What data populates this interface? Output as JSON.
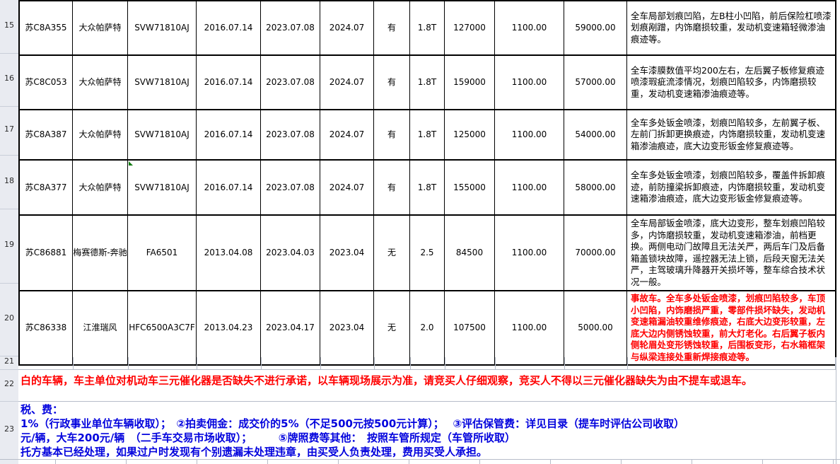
{
  "sheet": {
    "row_numbers": [
      "15",
      "16",
      "17",
      "18",
      "19",
      "20",
      "21",
      "22",
      "23"
    ],
    "vehicles": [
      {
        "no": "15",
        "plate": "苏C8A355",
        "brand": "大众帕萨特",
        "model": "SVW71810AJ",
        "reg_date": "2016.07.14",
        "check_date": "2023.07.08",
        "valid_until": "2024.07",
        "catalyst": "有",
        "displacement": "1.8T",
        "mileage": "127000",
        "fee": "1100.00",
        "price": "59000.00",
        "condition": "全车局部划痕凹陷，左B柱小凹陷，前后保险杠喷漆划痕剐蹭，内饰磨损较重，发动机变速箱轻微渗油痕迹等。",
        "condition_red": false,
        "corner_marker": false
      },
      {
        "no": "16",
        "plate": "苏C8C053",
        "brand": "大众帕萨特",
        "model": "SVW71810AJ",
        "reg_date": "2016.07.14",
        "check_date": "2023.07.08",
        "valid_until": "2024.07",
        "catalyst": "有",
        "displacement": "1.8T",
        "mileage": "159000",
        "fee": "1100.00",
        "price": "57000.00",
        "condition": "全车漆膜数值平均200左右，左后翼子板修复痕迹喷漆瑕疵流漆情况，划痕凹陷较多，内饰磨损较重，发动机变速箱渗油痕迹等。",
        "condition_red": false,
        "corner_marker": false
      },
      {
        "no": "17",
        "plate": "苏C8A387",
        "brand": "大众帕萨特",
        "model": "SVW71810AJ",
        "reg_date": "2016.07.14",
        "check_date": "2023.07.08",
        "valid_until": "2024.07",
        "catalyst": "有",
        "displacement": "1.8T",
        "mileage": "125000",
        "fee": "1100.00",
        "price": "54000.00",
        "condition": "全车多处钣金喷漆，划痕凹陷较多，左前翼子板、左前门拆卸更换痕迹，内饰磨损较重，发动机变速箱渗油痕迹，底大边变形钣金修复痕迹等。",
        "condition_red": false,
        "corner_marker": false
      },
      {
        "no": "18",
        "plate": "苏C8A377",
        "brand": "大众帕萨特",
        "model": "SVW71810AJ",
        "reg_date": "2016.07.14",
        "check_date": "2023.07.08",
        "valid_until": "2024.07",
        "catalyst": "有",
        "displacement": "1.8T",
        "mileage": "155000",
        "fee": "1100.00",
        "price": "58000.00",
        "condition": "全车多处钣金喷漆，划痕凹陷较多，覆盖件拆卸痕迹，前防撞梁拆卸痕迹，内饰磨损较重，发动机变速箱渗油痕迹，底大边变形钣金修复痕迹等。",
        "condition_red": false,
        "corner_marker": true
      },
      {
        "no": "19",
        "plate": "苏C86881",
        "brand": "梅赛德斯-奔驰",
        "model": "FA6501",
        "reg_date": "2013.04.08",
        "check_date": "2023.04.03",
        "valid_until": "2023.04",
        "catalyst": "无",
        "displacement": "2.5",
        "mileage": "84500",
        "fee": "1100.00",
        "price": "70000.00",
        "condition": "全车局部钣金喷漆，底大边变形，整车划痕凹陷较多，内饰磨损较重，发动机变速箱渗油，前档更换。两侧电动门故障且无法关严，两后车门及后备箱盖锁块故障，遥控器无法上锁，后段天窗无法关严，主驾玻璃升降器开关损坏等，整车综合技术状况一般。",
        "condition_red": false,
        "corner_marker": false
      },
      {
        "no": "20",
        "plate": "苏C86338",
        "brand": "江淮瑞风",
        "model": "HFC6500A3C7F",
        "reg_date": "2013.04.23",
        "check_date": "2023.04.17",
        "valid_until": "2023.04",
        "catalyst": "无",
        "displacement": "2.0",
        "mileage": "107500",
        "fee": "1100.00",
        "price": "5000.00",
        "condition": "事故车。全车多处钣金喷漆，划痕凹陷较多，车顶小凹陷，内饰磨损严重，零部件损坏缺失，发动机变速箱漏油较重维修痕迹，右底大边变形较重，左底大边内侧锈蚀较重，前大灯老化。右后翼子板内侧轮眉处变形锈蚀较重，后围板变形，右水箱框架与纵梁连接处重新焊接痕迹等。",
        "condition_red": true,
        "corner_marker": false
      }
    ],
    "notice_line": "白的车辆，车主单位对机动车三元催化器是否缺失不进行承诺，以车辆现场展示为准，请竞买人仔细观察，竞买人不得以三元催化器缺失为由不提车或退车。",
    "fee_notice_lines": [
      "税、费：",
      "1%（行政事业单位车辆收取）；　②拍卖佣金：成交价的5%（不足500元按500元计算）；　 ③评估保管费：详见目录（提车时评估公司收取）",
      "元/辆，大车200元/辆　（二手车交易市场收取）；　　　⑤牌照费等其他：　按照车管所规定（车管所收取）",
      "托方基本已经处理，如果过户时发现有个别遗漏未处理违章，由买受人负责处理，费用买受人承担。"
    ],
    "colors": {
      "warning_red": "#ff0000",
      "notice_blue": "#0202dd",
      "accident_red": "#ff0000",
      "grid_black": "#000000",
      "grid_grey": "#b7bdc9",
      "rowheader_bg": "#e9ebf1",
      "marker_green": "#0c7a0c"
    }
  }
}
